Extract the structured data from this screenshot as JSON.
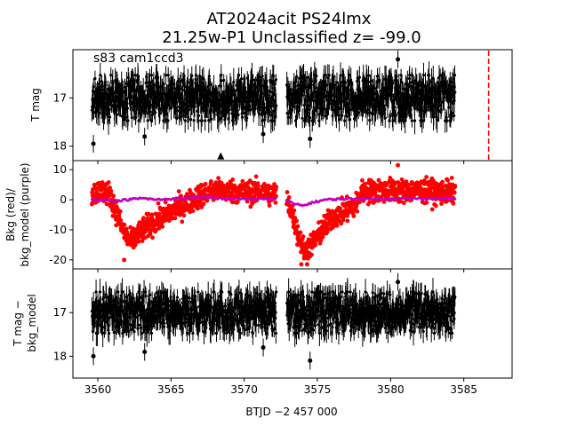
{
  "figure": {
    "title_line1": "AT2024acit  PS24lmx",
    "title_line2": "21.25w-P1 Unclassified z= -99.0",
    "annotation": "s83 cam1ccd3",
    "xlabel": "BTJD −2 457 000"
  },
  "colors": {
    "light_curve": "#000000",
    "background": "#ff0000",
    "bkg_model": "#bf00bf",
    "marker_line": "#ff0000"
  },
  "chart_data": [
    {
      "type": "scatter",
      "panel": "top",
      "ylabel": "T mag",
      "xlim": [
        3558.3,
        3588.3
      ],
      "ylim": [
        18.3,
        16.0
      ],
      "y_inverted": true,
      "xticks": [
        3560,
        3565,
        3570,
        3575,
        3580,
        3585
      ],
      "yticks": [
        17,
        18
      ],
      "series": [
        {
          "kind": "dense_scatter",
          "x_range": [
            3559.6,
            3584.4
          ],
          "center": 17.0,
          "spread": 0.45,
          "outliers": [
            [
              3559.7,
              17.95
            ],
            [
              3580.5,
              16.2
            ],
            [
              3563.2,
              17.8
            ],
            [
              3571.3,
              17.75
            ],
            [
              3574.5,
              17.85
            ]
          ]
        }
      ],
      "upper_limit_marker": {
        "x": 3568.4,
        "y": 18.22
      },
      "vertical_line": {
        "x": 3586.7,
        "style": "dashed"
      }
    },
    {
      "type": "scatter",
      "panel": "middle",
      "ylabel_line1": "Bkg (red)/",
      "ylabel_line2": "bkg_model (purple)",
      "xlim": [
        3558.3,
        3588.3
      ],
      "ylim": [
        -23.0,
        13.0
      ],
      "xticks": [
        3560,
        3565,
        3570,
        3575,
        3580,
        3585
      ],
      "yticks": [
        10,
        0,
        -10,
        -20
      ],
      "background_trend": [
        [
          3559.6,
          2.0
        ],
        [
          3560.3,
          3.0
        ],
        [
          3560.8,
          2.0
        ],
        [
          3561.2,
          -3.0
        ],
        [
          3561.7,
          -10.0
        ],
        [
          3562.2,
          -14.0
        ],
        [
          3562.7,
          -12.0
        ],
        [
          3563.3,
          -9.0
        ],
        [
          3564.0,
          -7.0
        ],
        [
          3565.0,
          -4.0
        ],
        [
          3566.0,
          -1.5
        ],
        [
          3567.0,
          1.5
        ],
        [
          3568.0,
          3.0
        ],
        [
          3569.0,
          3.0
        ],
        [
          3570.0,
          2.5
        ],
        [
          3571.0,
          2.5
        ],
        [
          3572.0,
          2.0
        ],
        [
          3572.7,
          1.5
        ],
        [
          3573.2,
          -3.0
        ],
        [
          3573.7,
          -12.0
        ],
        [
          3574.1,
          -17.0
        ],
        [
          3574.6,
          -15.0
        ],
        [
          3575.2,
          -11.0
        ],
        [
          3576.0,
          -6.0
        ],
        [
          3577.0,
          -3.5
        ],
        [
          3577.7,
          -1.5
        ],
        [
          3578.0,
          2.5
        ],
        [
          3579.0,
          3.0
        ],
        [
          3580.0,
          3.0
        ],
        [
          3581.0,
          3.0
        ],
        [
          3582.0,
          3.0
        ],
        [
          3583.0,
          2.5
        ],
        [
          3584.4,
          2.5
        ]
      ],
      "background_spread": 3.2,
      "bkg_model_trend": [
        [
          3559.6,
          0.0
        ],
        [
          3560.5,
          0.0
        ],
        [
          3561.0,
          -0.5
        ],
        [
          3562.0,
          0.0
        ],
        [
          3563.0,
          0.5
        ],
        [
          3564.0,
          0.0
        ],
        [
          3565.0,
          0.3
        ],
        [
          3566.0,
          0.5
        ],
        [
          3567.0,
          1.0
        ],
        [
          3568.0,
          0.5
        ],
        [
          3570.0,
          0.3
        ],
        [
          3572.0,
          0.3
        ],
        [
          3573.0,
          -0.5
        ],
        [
          3573.5,
          -1.5
        ],
        [
          3574.0,
          -2.0
        ],
        [
          3574.6,
          -1.0
        ],
        [
          3575.5,
          0.0
        ],
        [
          3576.5,
          0.2
        ],
        [
          3578.0,
          0.4
        ],
        [
          3580.0,
          0.3
        ],
        [
          3582.0,
          0.4
        ],
        [
          3584.4,
          0.4
        ]
      ],
      "outliers": [
        [
          3580.5,
          11.5
        ],
        [
          3561.8,
          -20.0
        ],
        [
          3573.9,
          -21.5
        ],
        [
          3574.3,
          -21.5
        ]
      ]
    },
    {
      "type": "scatter",
      "panel": "bottom",
      "ylabel_line1": "T mag −",
      "ylabel_line2": "bkg_model",
      "xlim": [
        3558.3,
        3588.3
      ],
      "ylim": [
        18.5,
        16.0
      ],
      "y_inverted": true,
      "xticks": [
        3560,
        3565,
        3570,
        3575,
        3580,
        3585
      ],
      "yticks": [
        17,
        18
      ],
      "series": [
        {
          "kind": "dense_scatter",
          "x_range": [
            3559.6,
            3584.4
          ],
          "center": 17.0,
          "spread": 0.45,
          "outliers": [
            [
              3559.7,
              18.0
            ],
            [
              3580.5,
              16.3
            ],
            [
              3563.2,
              17.9
            ],
            [
              3571.3,
              17.8
            ],
            [
              3574.5,
              18.1
            ]
          ]
        }
      ]
    }
  ]
}
